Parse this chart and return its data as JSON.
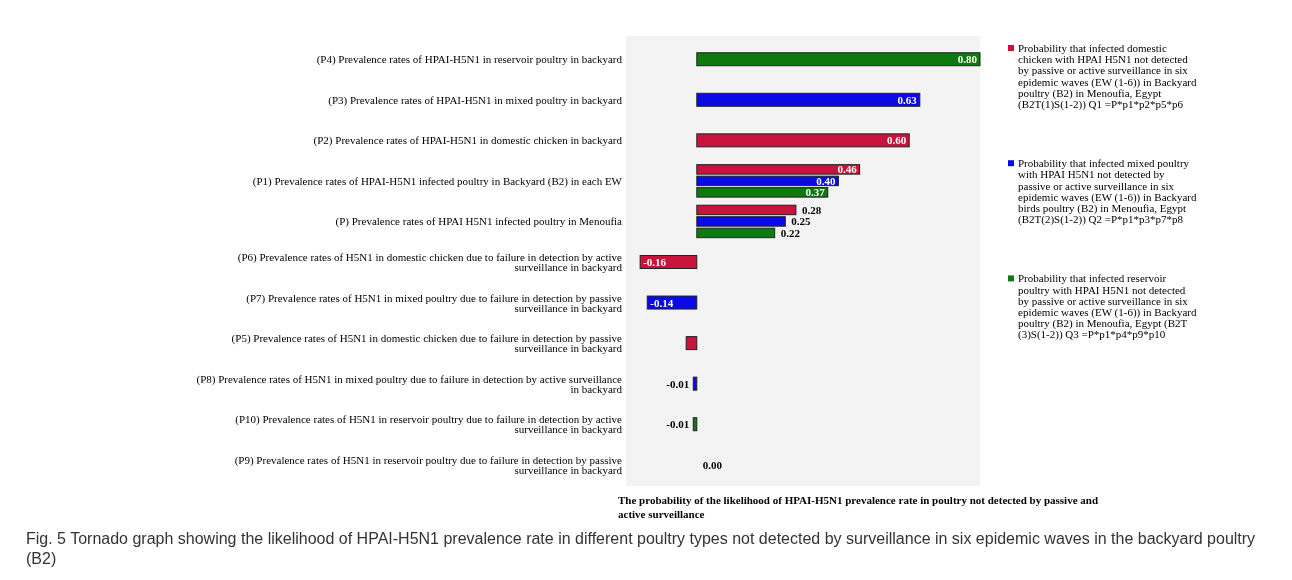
{
  "chart_data": {
    "type": "bar",
    "orientation": "horizontal",
    "xlabel": "The probability of the likelihood of HPAI-H5N1 prevalence rate in poultry not detected by passive and active surveillance",
    "categories": [
      "(P4) Prevalence rates of HPAI-H5N1 in reservoir poultry in backyard",
      "(P3) Prevalence rates of HPAI-H5N1 in mixed poultry in backyard",
      "(P2) Prevalence rates of HPAI-H5N1 in domestic chicken in backyard",
      "(P1) Prevalence rates of HPAI-H5N1 infected poultry in Backyard (B2) in each EW",
      "(P) Prevalence rates of HPAI H5N1 infected poultry in Menoufia",
      "(P6) Prevalence rates of H5N1 in domestic chicken due to failure in detection by active surveillance in backyard",
      "(P7) Prevalence rates of H5N1 in mixed poultry due to failure in detection by passive surveillance in backyard",
      "(P5) Prevalence rates of H5N1 in domestic chicken due to failure in detection by passive surveillance in backyard",
      "(P8) Prevalence rates of H5N1 in mixed poultry due to failure in detection by active surveillance in backyard",
      "(P10) Prevalence rates of H5N1 in reservoir poultry due to failure in detection by active surveillance in backyard",
      "(P9) Prevalence rates of H5N1 in reservoir poultry due to failure in detection by passive surveillance in backyard"
    ],
    "series": [
      {
        "name": "Probability that infected domestic chicken with HPAI H5N1 not detected by passive or active surveillance in six epidemic waves (EW (1-6)) in Backyard poultry (B2) in Menoufia, Egypt (B2T(1)S(1-2)) Q1 =P*p1*p2*p5*p6",
        "color": "#c8143c",
        "values": [
          null,
          null,
          0.6,
          0.46,
          0.28,
          -0.16,
          null,
          -0.03,
          null,
          null,
          null
        ],
        "value_labels": [
          null,
          null,
          "0.60",
          "0.46",
          "0.28",
          "-0.16",
          null,
          null,
          null,
          null,
          null
        ]
      },
      {
        "name": "Probability that infected mixed poultry with HPAI H5N1 not detected by passive or active surveillance in six epidemic waves (EW (1-6)) in Backyard birds poultry (B2) in Menoufia, Egypt (B2T(2)S(1-2)) Q2 =P*p1*p3*p7*p8",
        "color": "#0a0ae6",
        "values": [
          null,
          0.63,
          null,
          0.4,
          0.25,
          null,
          -0.14,
          null,
          -0.01,
          null,
          null
        ],
        "value_labels": [
          null,
          "0.63",
          null,
          "0.40",
          "0.25",
          null,
          "-0.14",
          null,
          "-0.01",
          null,
          null
        ]
      },
      {
        "name": "Probability that infected reservoir poultry with HPAI H5N1 not detected by passive or active surveillance in six epidemic waves (EW (1-6)) in Backyard poultry (B2) in Menoufia, Egypt (B2T (3)S(1-2)) Q3 =P*p1*p4*p9*p10",
        "color": "#0f780f",
        "values": [
          0.8,
          null,
          null,
          0.37,
          0.22,
          null,
          null,
          null,
          null,
          -0.01,
          null
        ],
        "value_labels": [
          "0.80",
          null,
          null,
          "0.37",
          "0.22",
          null,
          null,
          null,
          null,
          "-0.01",
          null
        ]
      },
      {
        "color": "#000000",
        "values": [
          null,
          null,
          null,
          null,
          null,
          null,
          null,
          null,
          null,
          null,
          0.0
        ],
        "value_labels": [
          null,
          null,
          null,
          null,
          null,
          null,
          null,
          null,
          null,
          null,
          "0.00"
        ]
      }
    ],
    "xlim": [
      -0.2,
      0.8
    ],
    "tick_labels": "y",
    "legend": "right",
    "annotations": [
      "Fig. 5 Tornado graph showing the likelihood of HPAI-H5N1 prevalence rate in different poultry types not detected by surveillance in six epidemic waves in the backyard poultry (B2)"
    ]
  }
}
